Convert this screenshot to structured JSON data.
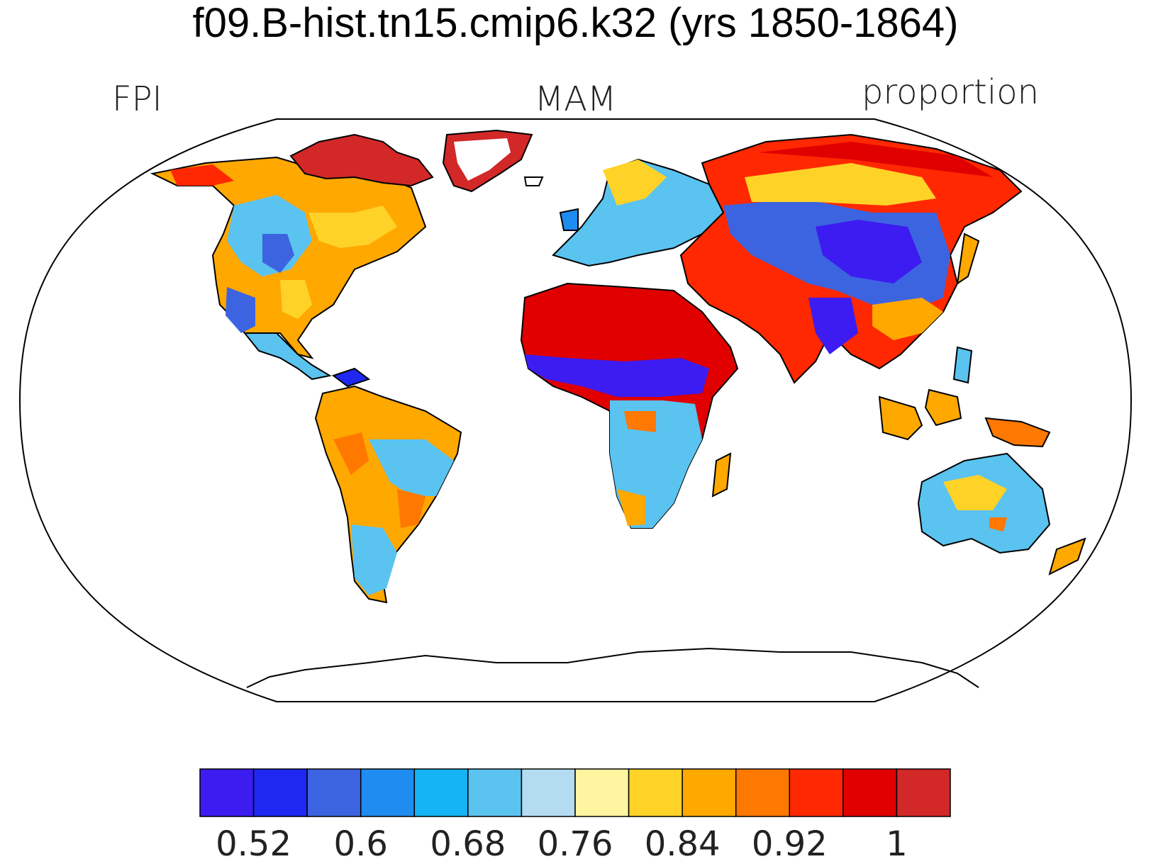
{
  "title": "f09.B-hist.tn15.cmip6.k32 (yrs 1850-1864)",
  "subtitle_left": "FPI",
  "subtitle_center": "MAM",
  "subtitle_right": "proportion",
  "colorbar": {
    "colors": [
      "#3c1cf0",
      "#1e28f0",
      "#3c64e0",
      "#1e8cf0",
      "#14b4f5",
      "#5ac3f0",
      "#b4dcf0",
      "#fff5a0",
      "#ffd228",
      "#ffa800",
      "#ff7800",
      "#ff2800",
      "#e00000",
      "#d22828"
    ],
    "tick_labels": [
      "0.52",
      "0.6",
      "0.68",
      "0.76",
      "0.84",
      "0.92",
      "1"
    ]
  }
}
